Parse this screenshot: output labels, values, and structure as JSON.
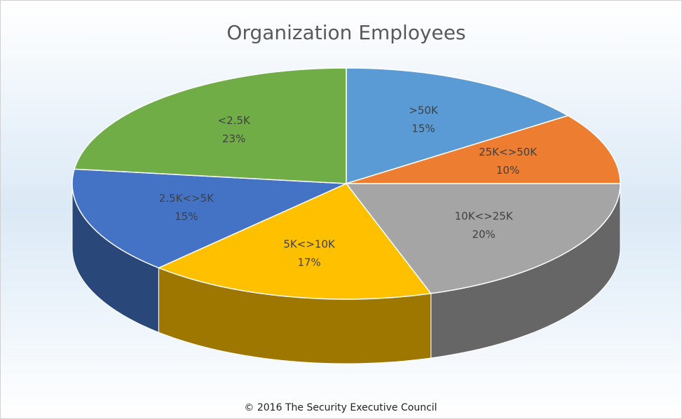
{
  "chart_data": {
    "type": "pie",
    "title": "Organization Employees",
    "categories": [
      ">50K",
      "25K<>50K",
      "10K<>25K",
      "5K<>10K",
      "2.5K<>5K",
      "<2.5K"
    ],
    "values": [
      15,
      10,
      20,
      17,
      15,
      23
    ],
    "value_labels": [
      "15%",
      "10%",
      "20%",
      "17%",
      "15%",
      "23%"
    ],
    "colors": [
      "#5b9bd5",
      "#ed7d31",
      "#a5a5a5",
      "#ffc000",
      "#4472c4",
      "#70ad47"
    ],
    "source": "© 2016 The Security Executive Council"
  }
}
